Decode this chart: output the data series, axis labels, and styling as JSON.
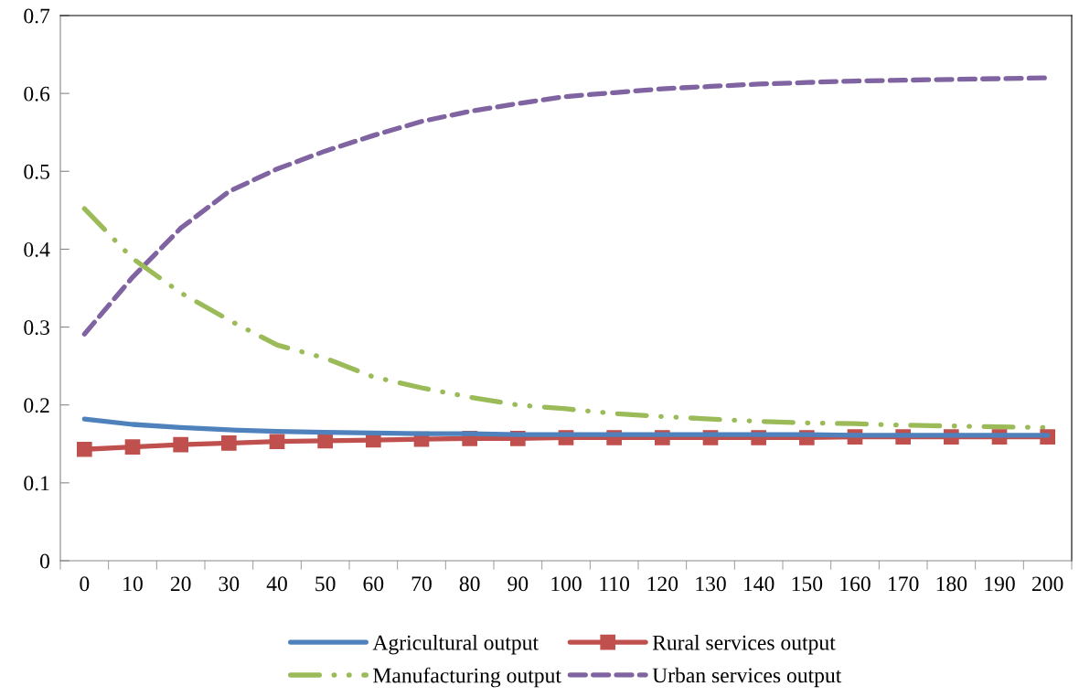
{
  "chart_data": {
    "type": "line",
    "categories": [
      "0",
      "10",
      "20",
      "30",
      "40",
      "50",
      "60",
      "70",
      "80",
      "90",
      "100",
      "110",
      "120",
      "130",
      "140",
      "150",
      "160",
      "170",
      "180",
      "190",
      "200"
    ],
    "series": [
      {
        "name": "Agricultural output",
        "color": "#4f81bd",
        "line_style": "solid",
        "marker": "none",
        "values": [
          0.182,
          0.175,
          0.171,
          0.168,
          0.166,
          0.165,
          0.164,
          0.163,
          0.163,
          0.162,
          0.162,
          0.162,
          0.162,
          0.162,
          0.162,
          0.162,
          0.161,
          0.161,
          0.161,
          0.161,
          0.161
        ]
      },
      {
        "name": "Rural services output",
        "color": "#c0504d",
        "line_style": "solid",
        "marker": "square",
        "values": [
          0.143,
          0.146,
          0.149,
          0.151,
          0.153,
          0.154,
          0.155,
          0.156,
          0.157,
          0.157,
          0.158,
          0.158,
          0.158,
          0.158,
          0.158,
          0.158,
          0.159,
          0.159,
          0.159,
          0.159,
          0.159
        ]
      },
      {
        "name": "Manufacturing output",
        "color": "#9bbb59",
        "line_style": "dashdotdot",
        "marker": "none",
        "values": [
          0.452,
          0.388,
          0.344,
          0.309,
          0.277,
          0.26,
          0.236,
          0.222,
          0.21,
          0.2,
          0.195,
          0.189,
          0.185,
          0.182,
          0.179,
          0.177,
          0.176,
          0.174,
          0.173,
          0.172,
          0.171
        ]
      },
      {
        "name": "Urban services output",
        "color": "#8064a2",
        "line_style": "dashed",
        "marker": "none",
        "values": [
          0.291,
          0.364,
          0.427,
          0.474,
          0.503,
          0.526,
          0.546,
          0.564,
          0.577,
          0.587,
          0.596,
          0.601,
          0.606,
          0.609,
          0.612,
          0.614,
          0.616,
          0.617,
          0.618,
          0.619,
          0.62
        ]
      }
    ],
    "ylim": [
      0,
      0.7
    ],
    "yticks": [
      0,
      0.1,
      0.2,
      0.3,
      0.4,
      0.5,
      0.6,
      0.7
    ],
    "grid": false,
    "legend": "bottom"
  }
}
